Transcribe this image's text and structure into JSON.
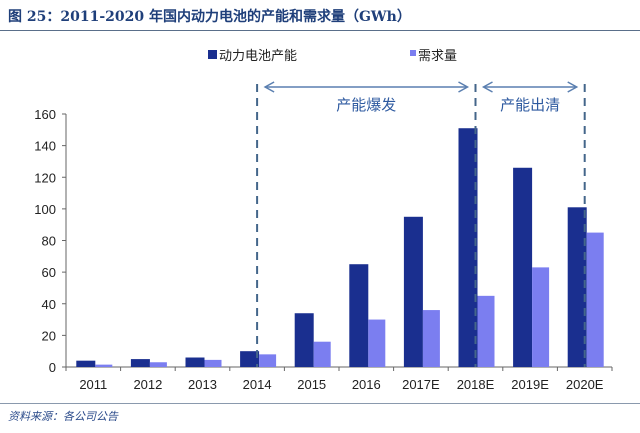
{
  "title": "图 25：2011-2020 年国内动力电池的产能和需求量（GWh）",
  "source": "资料来源：各公司公告",
  "chart_data": {
    "type": "bar",
    "title": "图 25：2011-2020 年国内动力电池的产能和需求量（GWh）",
    "categories": [
      "2011",
      "2012",
      "2013",
      "2014",
      "2015",
      "2016",
      "2017E",
      "2018E",
      "2019E",
      "2020E"
    ],
    "series": [
      {
        "name": "动力电池产能",
        "color": "#1a2f8f",
        "values": [
          4,
          5,
          6,
          10,
          34,
          65,
          95,
          151,
          126,
          101
        ]
      },
      {
        "name": "需求量",
        "color": "#7b7ef0",
        "values": [
          1.5,
          3,
          4.5,
          8,
          16,
          30,
          36,
          45,
          63,
          85
        ]
      }
    ],
    "ylim": [
      0,
      160
    ],
    "yticks": [
      0,
      20,
      40,
      60,
      80,
      100,
      120,
      140,
      160
    ],
    "grid": false,
    "legend": "top",
    "annotations": [
      {
        "text": "产能爆发",
        "from": "2014",
        "to": "2018E"
      },
      {
        "text": "产能出清",
        "from": "2018E",
        "to": "2020E"
      }
    ]
  }
}
